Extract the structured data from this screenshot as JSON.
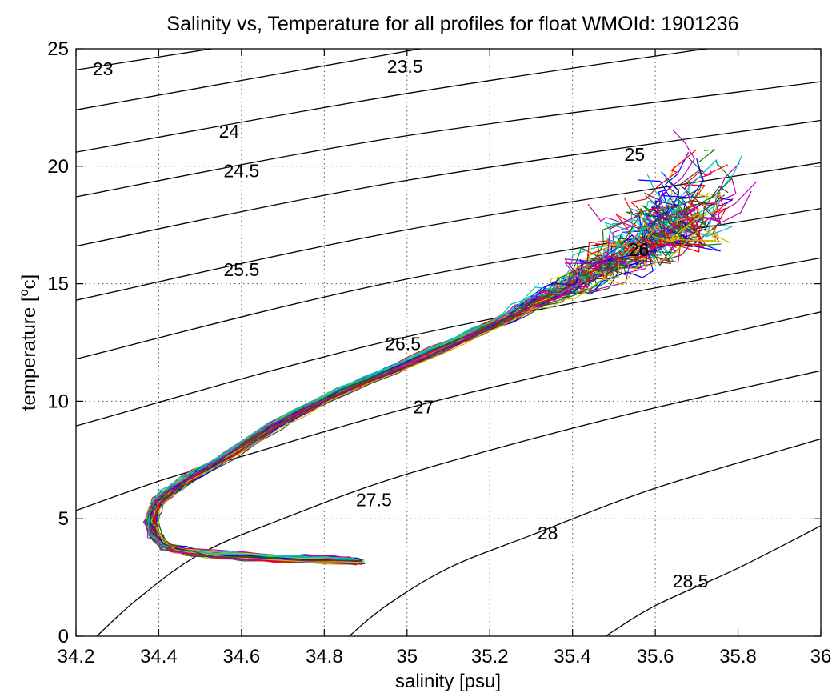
{
  "chart_data": {
    "type": "line",
    "title": "Salinity vs, Temperature for all profiles for float WMOId: 1901236",
    "xlabel": "salinity [psu]",
    "ylabel_main": "temperature [",
    "ylabel_sup": "o",
    "ylabel_end": "c]",
    "xlim": [
      34.2,
      36
    ],
    "ylim": [
      0,
      25
    ],
    "xticks": [
      34.2,
      34.4,
      34.6,
      34.8,
      35,
      35.2,
      35.4,
      35.6,
      35.8,
      36
    ],
    "xtick_labels": [
      "34.2",
      "34.4",
      "34.6",
      "34.8",
      "35",
      "35.2",
      "35.4",
      "35.6",
      "35.8",
      "36"
    ],
    "yticks": [
      0,
      5,
      10,
      15,
      20,
      25
    ],
    "ytick_labels": [
      "0",
      "5",
      "10",
      "15",
      "20",
      "25"
    ],
    "grid": true,
    "density_contours": [
      {
        "label": "23",
        "value": 23,
        "points": [
          [
            34.2,
            24.1
          ],
          [
            34.6,
            25.2
          ]
        ],
        "label_at": [
          34.265,
          24.15
        ]
      },
      {
        "label": "23.5",
        "value": 23.5,
        "points": [
          [
            34.2,
            22.4
          ],
          [
            35.0,
            24.9
          ],
          [
            35.1,
            25.2
          ]
        ],
        "label_at": [
          34.995,
          24.25
        ]
      },
      {
        "label": "24",
        "value": 24,
        "points": [
          [
            34.2,
            20.6
          ],
          [
            35.0,
            23.1
          ],
          [
            35.8,
            25.2
          ]
        ],
        "label_at": [
          34.57,
          21.5
        ]
      },
      {
        "label": "24.5",
        "value": 24.5,
        "points": [
          [
            34.2,
            18.7
          ],
          [
            35.0,
            21.3
          ],
          [
            36.0,
            23.6
          ]
        ],
        "label_at": [
          34.6,
          19.8
        ]
      },
      {
        "label": "25",
        "value": 25,
        "points": [
          [
            34.2,
            16.6
          ],
          [
            35.0,
            19.4
          ],
          [
            36.0,
            21.95
          ]
        ],
        "label_at": [
          35.55,
          20.5
        ]
      },
      {
        "label": "25.5",
        "value": 25.5,
        "points": [
          [
            34.2,
            14.3
          ],
          [
            35.0,
            17.3
          ],
          [
            36.0,
            20.15
          ]
        ],
        "label_at": [
          34.6,
          15.6
        ]
      },
      {
        "label": "26",
        "value": 26,
        "points": [
          [
            34.2,
            11.8
          ],
          [
            35.0,
            15.2
          ],
          [
            36.0,
            18.2
          ]
        ],
        "label_at": [
          35.56,
          16.45
        ]
      },
      {
        "label": "26.5",
        "value": 26.5,
        "points": [
          [
            34.2,
            8.95
          ],
          [
            35.0,
            12.75
          ],
          [
            36.0,
            16.1
          ]
        ],
        "label_at": [
          34.99,
          12.45
        ]
      },
      {
        "label": "27",
        "value": 27,
        "points": [
          [
            34.2,
            5.35
          ],
          [
            34.4,
            6.6
          ],
          [
            34.6,
            7.65
          ],
          [
            35.0,
            9.7
          ],
          [
            35.5,
            11.8
          ],
          [
            36.0,
            13.8
          ]
        ],
        "label_at": [
          35.04,
          9.75
        ]
      },
      {
        "label": "27.5",
        "value": 27.5,
        "points": [
          [
            34.25,
            0.0
          ],
          [
            34.35,
            1.6
          ],
          [
            34.5,
            3.5
          ],
          [
            34.7,
            5.0
          ],
          [
            35.0,
            6.9
          ],
          [
            35.5,
            9.3
          ],
          [
            36.0,
            11.3
          ]
        ],
        "label_at": [
          34.92,
          5.8
        ]
      },
      {
        "label": "28",
        "value": 28,
        "points": [
          [
            34.86,
            0.0
          ],
          [
            34.95,
            1.3
          ],
          [
            35.1,
            2.9
          ],
          [
            35.3,
            4.3
          ],
          [
            35.6,
            6.3
          ],
          [
            36.0,
            8.4
          ]
        ],
        "label_at": [
          35.34,
          4.4
        ]
      },
      {
        "label": "28.5",
        "value": 28.5,
        "points": [
          [
            35.48,
            0.0
          ],
          [
            35.6,
            1.3
          ],
          [
            35.8,
            2.9
          ],
          [
            36.0,
            4.7
          ]
        ],
        "label_at": [
          35.685,
          2.35
        ]
      }
    ],
    "series_mean": {
      "salinity": [
        34.88,
        34.7,
        34.5,
        34.42,
        34.39,
        34.38,
        34.4,
        34.46,
        34.55,
        34.7,
        34.85,
        35.0,
        35.15,
        35.25,
        35.35,
        35.45,
        35.55,
        35.65
      ],
      "temperature": [
        3.2,
        3.3,
        3.5,
        3.8,
        4.3,
        5.0,
        5.8,
        6.6,
        7.5,
        9.2,
        10.5,
        11.6,
        12.8,
        13.6,
        14.4,
        15.2,
        16.1,
        17.0
      ]
    },
    "profile_colors": [
      "#0000ff",
      "#008000",
      "#ff0000",
      "#00bfbf",
      "#bf00bf",
      "#bfbf00",
      "#404040"
    ],
    "profile_count": 56
  }
}
